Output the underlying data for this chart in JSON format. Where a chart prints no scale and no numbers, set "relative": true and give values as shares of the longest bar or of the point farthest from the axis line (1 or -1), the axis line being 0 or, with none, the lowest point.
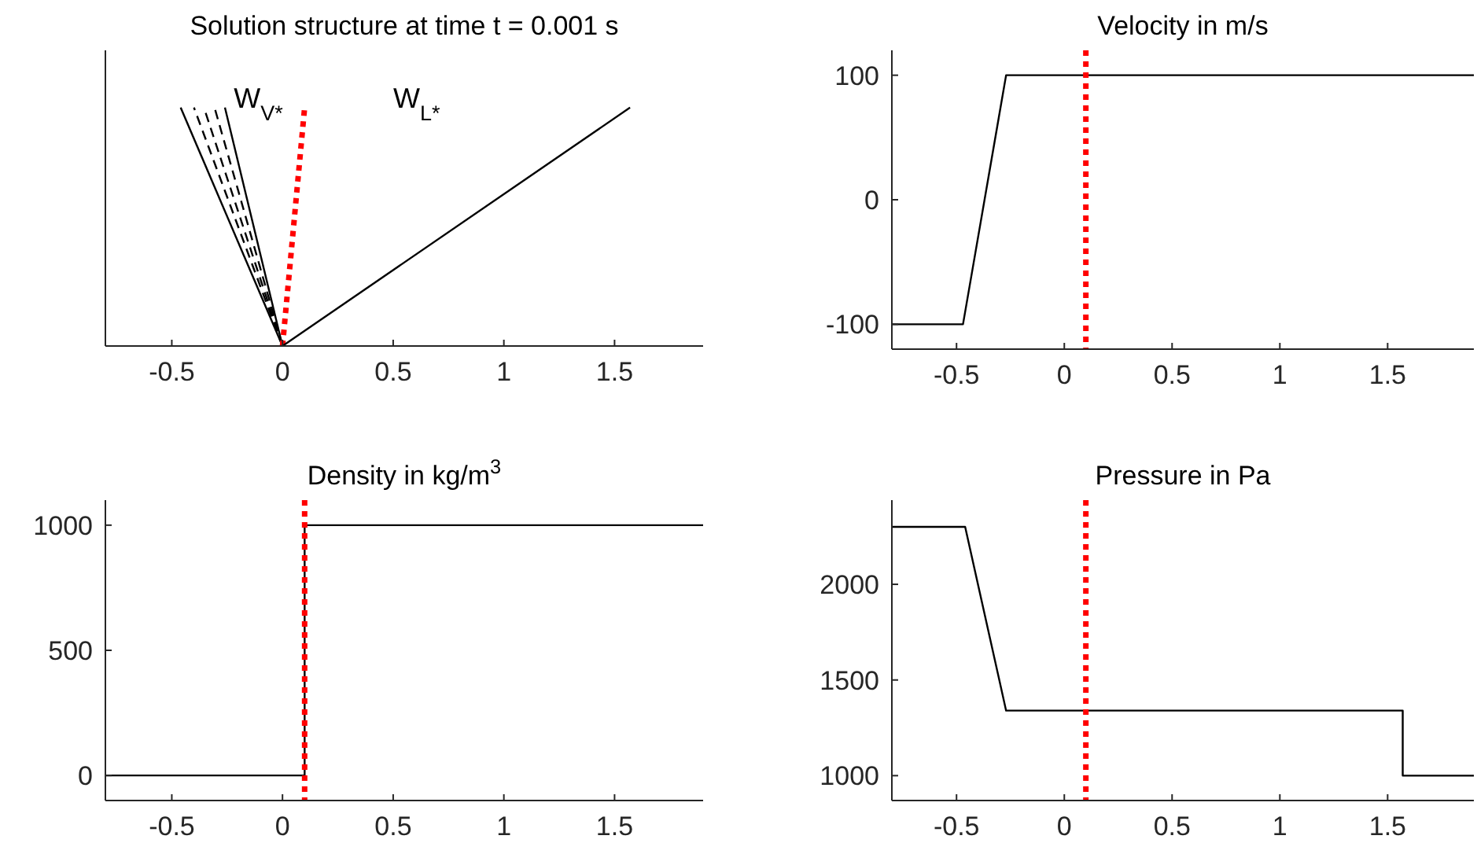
{
  "chart_data": [
    {
      "type": "line",
      "title": "Solution structure at time t = 0.001 s",
      "relative": true,
      "tick_labels": "x",
      "xlim": [
        -0.8,
        1.9
      ],
      "xticks": [
        -0.5,
        0,
        0.5,
        1,
        1.5
      ],
      "annotations": [
        "W$_{V*}$",
        "W$_{L*}$"
      ],
      "series": [
        {
          "color": "#000000",
          "x": [
            0,
            -0.46
          ],
          "values": [
            0,
            1
          ],
          "line_style": "solid"
        },
        {
          "color": "#000000",
          "x": [
            0,
            -0.4
          ],
          "values": [
            0,
            1
          ],
          "line_style": "dashed"
        },
        {
          "color": "#000000",
          "x": [
            0,
            -0.355
          ],
          "values": [
            0,
            1
          ],
          "line_style": "dashed"
        },
        {
          "color": "#000000",
          "x": [
            0,
            -0.307
          ],
          "values": [
            0,
            1
          ],
          "line_style": "dashed"
        },
        {
          "color": "#000000",
          "x": [
            0,
            -0.26
          ],
          "values": [
            0,
            1
          ],
          "line_style": "solid"
        },
        {
          "color": "#ff0000",
          "x": [
            0,
            0.1
          ],
          "values": [
            0,
            1
          ],
          "line_style": "dotted"
        },
        {
          "color": "#000000",
          "x": [
            0,
            1.57
          ],
          "values": [
            0,
            1
          ],
          "line_style": "solid"
        }
      ]
    },
    {
      "type": "line",
      "title": "Velocity in m/s",
      "xlim": [
        -0.8,
        1.9
      ],
      "xticks": [
        -0.5,
        0,
        0.5,
        1,
        1.5
      ],
      "ylim": [
        -120,
        120
      ],
      "yticks": [
        -100,
        0,
        100
      ],
      "ref_lines": [
        {
          "axis": "x",
          "value": 0.1,
          "color": "#ff0000",
          "line_style": "dotted"
        }
      ],
      "series": [
        {
          "color": "#000000",
          "x": [
            -0.8,
            -0.47,
            -0.27,
            1.9
          ],
          "values": [
            -100,
            -100,
            100,
            100
          ]
        }
      ]
    },
    {
      "type": "line",
      "title": "Density in kg/m$^{3}$",
      "xlim": [
        -0.8,
        1.9
      ],
      "xticks": [
        -0.5,
        0,
        0.5,
        1,
        1.5
      ],
      "ylim": [
        -100,
        1100
      ],
      "yticks": [
        0,
        500,
        1000
      ],
      "ref_lines": [
        {
          "axis": "x",
          "value": 0.1,
          "color": "#ff0000",
          "line_style": "dotted"
        }
      ],
      "series": [
        {
          "color": "#000000",
          "x": [
            -0.8,
            0.1,
            0.1,
            1.9
          ],
          "values": [
            0,
            0,
            1000,
            1000
          ]
        }
      ]
    },
    {
      "type": "line",
      "title": "Pressure in Pa",
      "xlim": [
        -0.8,
        1.9
      ],
      "xticks": [
        -0.5,
        0,
        0.5,
        1,
        1.5
      ],
      "ylim": [
        870,
        2440
      ],
      "yticks": [
        1000,
        1500,
        2000
      ],
      "ref_lines": [
        {
          "axis": "x",
          "value": 0.1,
          "color": "#ff0000",
          "line_style": "dotted"
        }
      ],
      "series": [
        {
          "color": "#000000",
          "x": [
            -0.8,
            -0.46,
            -0.27,
            1.57,
            1.57,
            1.9
          ],
          "values": [
            2300,
            2300,
            1340,
            1340,
            1000,
            1000
          ]
        }
      ]
    }
  ]
}
